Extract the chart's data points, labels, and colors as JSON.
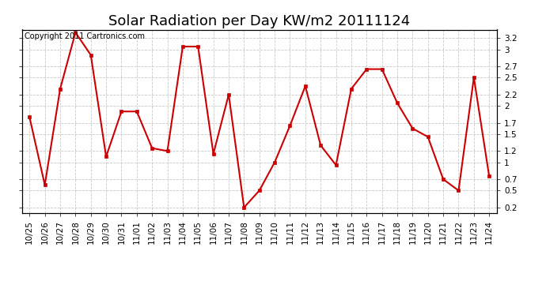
{
  "title": "Solar Radiation per Day KW/m2 20111124",
  "copyright_text": "Copyright 2011 Cartronics.com",
  "x_labels": [
    "10/25",
    "10/26",
    "10/27",
    "10/28",
    "10/29",
    "10/30",
    "10/31",
    "11/01",
    "11/02",
    "11/03",
    "11/04",
    "11/05",
    "11/06",
    "11/07",
    "11/08",
    "11/09",
    "11/10",
    "11/11",
    "11/12",
    "11/13",
    "11/14",
    "11/15",
    "11/16",
    "11/17",
    "11/18",
    "11/19",
    "11/20",
    "11/21",
    "11/22",
    "11/23",
    "11/24"
  ],
  "y_final": [
    1.8,
    0.6,
    2.3,
    3.3,
    2.9,
    1.1,
    1.9,
    1.9,
    1.25,
    1.2,
    3.05,
    3.05,
    1.15,
    2.2,
    0.2,
    0.5,
    1.0,
    1.65,
    2.35,
    1.3,
    0.95,
    2.3,
    2.65,
    2.65,
    2.05,
    1.6,
    1.45,
    0.7,
    0.5,
    2.5,
    0.75
  ],
  "line_color": "#cc0000",
  "marker_color": "#cc0000",
  "bg_color": "#ffffff",
  "plot_bg_color": "#ffffff",
  "grid_color": "#bbbbbb",
  "ylim": [
    0.1,
    3.35
  ],
  "yticks": [
    0.2,
    0.5,
    0.7,
    1.0,
    1.2,
    1.5,
    1.7,
    2.0,
    2.2,
    2.5,
    2.7,
    3.0,
    3.2
  ],
  "title_fontsize": 13,
  "copyright_fontsize": 7,
  "tick_fontsize": 7.5
}
